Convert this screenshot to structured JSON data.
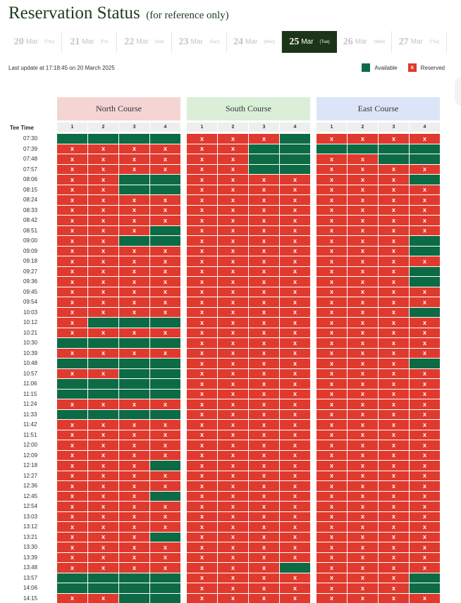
{
  "title": "Reservation Status",
  "subtitle": "(for reference only)",
  "dates": [
    {
      "day": "20",
      "month": "Mar",
      "weekday": "(Thu)"
    },
    {
      "day": "21",
      "month": "Mar",
      "weekday": "(Fri)"
    },
    {
      "day": "22",
      "month": "Mar",
      "weekday": "(Sat)"
    },
    {
      "day": "23",
      "month": "Mar",
      "weekday": "(Sun)"
    },
    {
      "day": "24",
      "month": "Mar",
      "weekday": "(Mon)"
    },
    {
      "day": "25",
      "month": "Mar",
      "weekday": "(Tue)"
    },
    {
      "day": "26",
      "month": "Mar",
      "weekday": "(Wed)"
    },
    {
      "day": "27",
      "month": "Mar",
      "weekday": "(Thu)"
    }
  ],
  "active_date_index": 5,
  "last_update": "Last update at 17:18:45 on 20 March 2025",
  "legend": {
    "available": "Available",
    "reserved": "Reserved",
    "reserved_mark": "x"
  },
  "colors": {
    "available": "#0c6b45",
    "reserved": "#e03a2e",
    "active_tab": "#1c3518",
    "north": "#f5d4d4",
    "south": "#dbefd8",
    "east": "#dce5f7",
    "cols_row": "#eeeeee"
  },
  "tee_time_label": "Tee Time",
  "courses": [
    {
      "name": "North Course",
      "color_key": "north",
      "columns": [
        "1",
        "2",
        "3",
        "4"
      ]
    },
    {
      "name": "South Course",
      "color_key": "south",
      "columns": [
        "1",
        "2",
        "3",
        "4"
      ]
    },
    {
      "name": "East Course",
      "color_key": "east",
      "columns": [
        "1",
        "2",
        "3",
        "4"
      ]
    }
  ],
  "times": [
    "07:30",
    "07:39",
    "07:48",
    "07:57",
    "08:06",
    "08:15",
    "08:24",
    "08:33",
    "08:42",
    "08:51",
    "09:00",
    "09:09",
    "09:18",
    "09:27",
    "09:36",
    "09:45",
    "09:54",
    "10:03",
    "10:12",
    "10:21",
    "10:30",
    "10:39",
    "10:48",
    "10:57",
    "11:06",
    "11:15",
    "11:24",
    "11:33",
    "11:42",
    "11:51",
    "12:00",
    "12:09",
    "12:18",
    "12:27",
    "12:36",
    "12:45",
    "12:54",
    "13:03",
    "13:12",
    "13:21",
    "13:30",
    "13:39",
    "13:48",
    "13:57",
    "14:06",
    "14:15"
  ],
  "status_key": "A = available, X = reserved",
  "availability": [
    [
      "AAAA",
      "XXXA",
      "XXXX"
    ],
    [
      "XXXX",
      "XXAA",
      "AAAA"
    ],
    [
      "XXXX",
      "XXAA",
      "XXAA"
    ],
    [
      "XXXX",
      "XXAA",
      "XXXX"
    ],
    [
      "XXAA",
      "XXXX",
      "XXXA"
    ],
    [
      "XXAA",
      "XXXX",
      "XXXX"
    ],
    [
      "XXXX",
      "XXXX",
      "XXXX"
    ],
    [
      "XXXX",
      "XXXX",
      "XXXX"
    ],
    [
      "XXXX",
      "XXXX",
      "XXXX"
    ],
    [
      "XXXA",
      "XXXX",
      "XXXX"
    ],
    [
      "XXAA",
      "XXXX",
      "XXXA"
    ],
    [
      "XXXX",
      "XXXX",
      "XXXA"
    ],
    [
      "XXXX",
      "XXXX",
      "XXXX"
    ],
    [
      "XXXX",
      "XXXX",
      "XXXA"
    ],
    [
      "XXXX",
      "XXXX",
      "XXXA"
    ],
    [
      "XXXX",
      "XXXX",
      "XXXX"
    ],
    [
      "XXXX",
      "XXXX",
      "XXXX"
    ],
    [
      "XXXX",
      "XXXX",
      "XXXA"
    ],
    [
      "XAAA",
      "XXXX",
      "XXXX"
    ],
    [
      "XXXX",
      "XXXX",
      "XXXX"
    ],
    [
      "AAAA",
      "XXXX",
      "XXXX"
    ],
    [
      "XXXX",
      "XXXX",
      "XXXX"
    ],
    [
      "AAAA",
      "XXXX",
      "XXXA"
    ],
    [
      "XXAA",
      "XXXX",
      "XXXX"
    ],
    [
      "AAAA",
      "XXXX",
      "XXXX"
    ],
    [
      "AAAA",
      "XXXX",
      "XXXX"
    ],
    [
      "XXXX",
      "XXXX",
      "XXXX"
    ],
    [
      "AAAA",
      "XXXX",
      "XXXX"
    ],
    [
      "XXXX",
      "XXXX",
      "XXXX"
    ],
    [
      "XXXX",
      "XXXX",
      "XXXX"
    ],
    [
      "XXXX",
      "XXXX",
      "XXXX"
    ],
    [
      "XXXX",
      "XXXX",
      "XXXX"
    ],
    [
      "XXXA",
      "XXXX",
      "XXXX"
    ],
    [
      "XXXX",
      "XXXX",
      "XXXX"
    ],
    [
      "XXXX",
      "XXXX",
      "XXXX"
    ],
    [
      "XXXA",
      "XXXX",
      "XXXX"
    ],
    [
      "XXXX",
      "XXXX",
      "XXXX"
    ],
    [
      "XXXX",
      "XXXX",
      "XXXX"
    ],
    [
      "XXXX",
      "XXXX",
      "XXXX"
    ],
    [
      "XXXA",
      "XXXX",
      "XXXX"
    ],
    [
      "XXXX",
      "XXXX",
      "XXXX"
    ],
    [
      "XXXX",
      "XXXX",
      "XXXX"
    ],
    [
      "XXXX",
      "XXXA",
      "XXXX"
    ],
    [
      "AAAA",
      "XXXX",
      "XXXA"
    ],
    [
      "AAAA",
      "XXXX",
      "XXXA"
    ],
    [
      "XXAA",
      "XXXX",
      "XXXX"
    ]
  ]
}
